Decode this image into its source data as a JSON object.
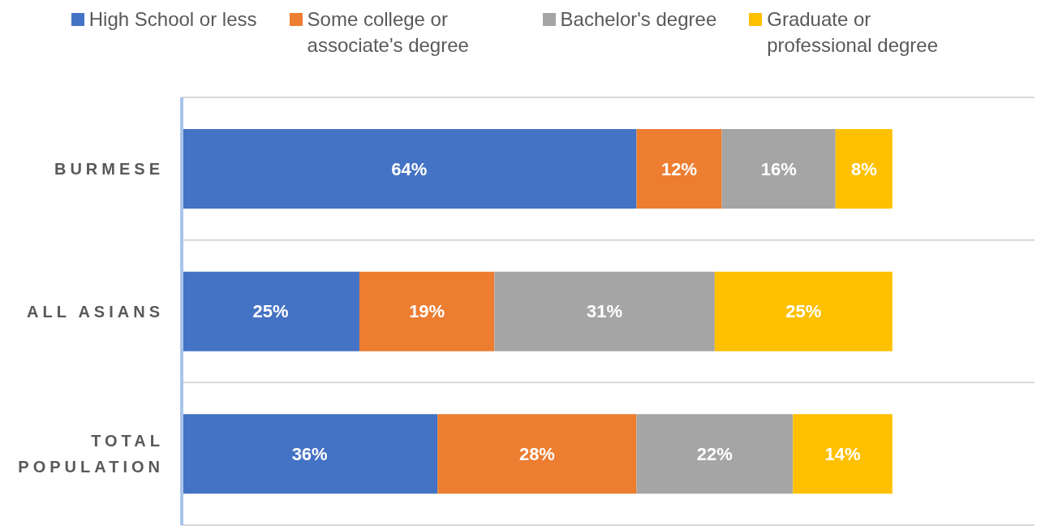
{
  "chart_data": {
    "type": "bar",
    "orientation": "horizontal",
    "stacked": true,
    "categories": [
      "BURMESE",
      "ALL ASIANS",
      "TOTAL POPULATION"
    ],
    "series": [
      {
        "name": "High School or less",
        "color": "#4472c4",
        "values": [
          64,
          25,
          36
        ],
        "value_labels": [
          "64%",
          "25%",
          "36%"
        ]
      },
      {
        "name": "Some college or associate's degree",
        "color": "#ed7d31",
        "values": [
          12,
          19,
          28
        ],
        "value_labels": [
          "12%",
          "19%",
          "28%"
        ]
      },
      {
        "name": "Bachelor's degree",
        "color": "#a5a5a5",
        "values": [
          16,
          31,
          22
        ],
        "value_labels": [
          "16%",
          "31%",
          "22%"
        ]
      },
      {
        "name": "Graduate or professional degree",
        "color": "#ffc000",
        "values": [
          8,
          25,
          14
        ],
        "value_labels": [
          "8%",
          "25%",
          "14%"
        ]
      }
    ],
    "xlim": [
      0,
      120
    ],
    "tick_labels": "y",
    "grid": "y",
    "legend": "top"
  }
}
